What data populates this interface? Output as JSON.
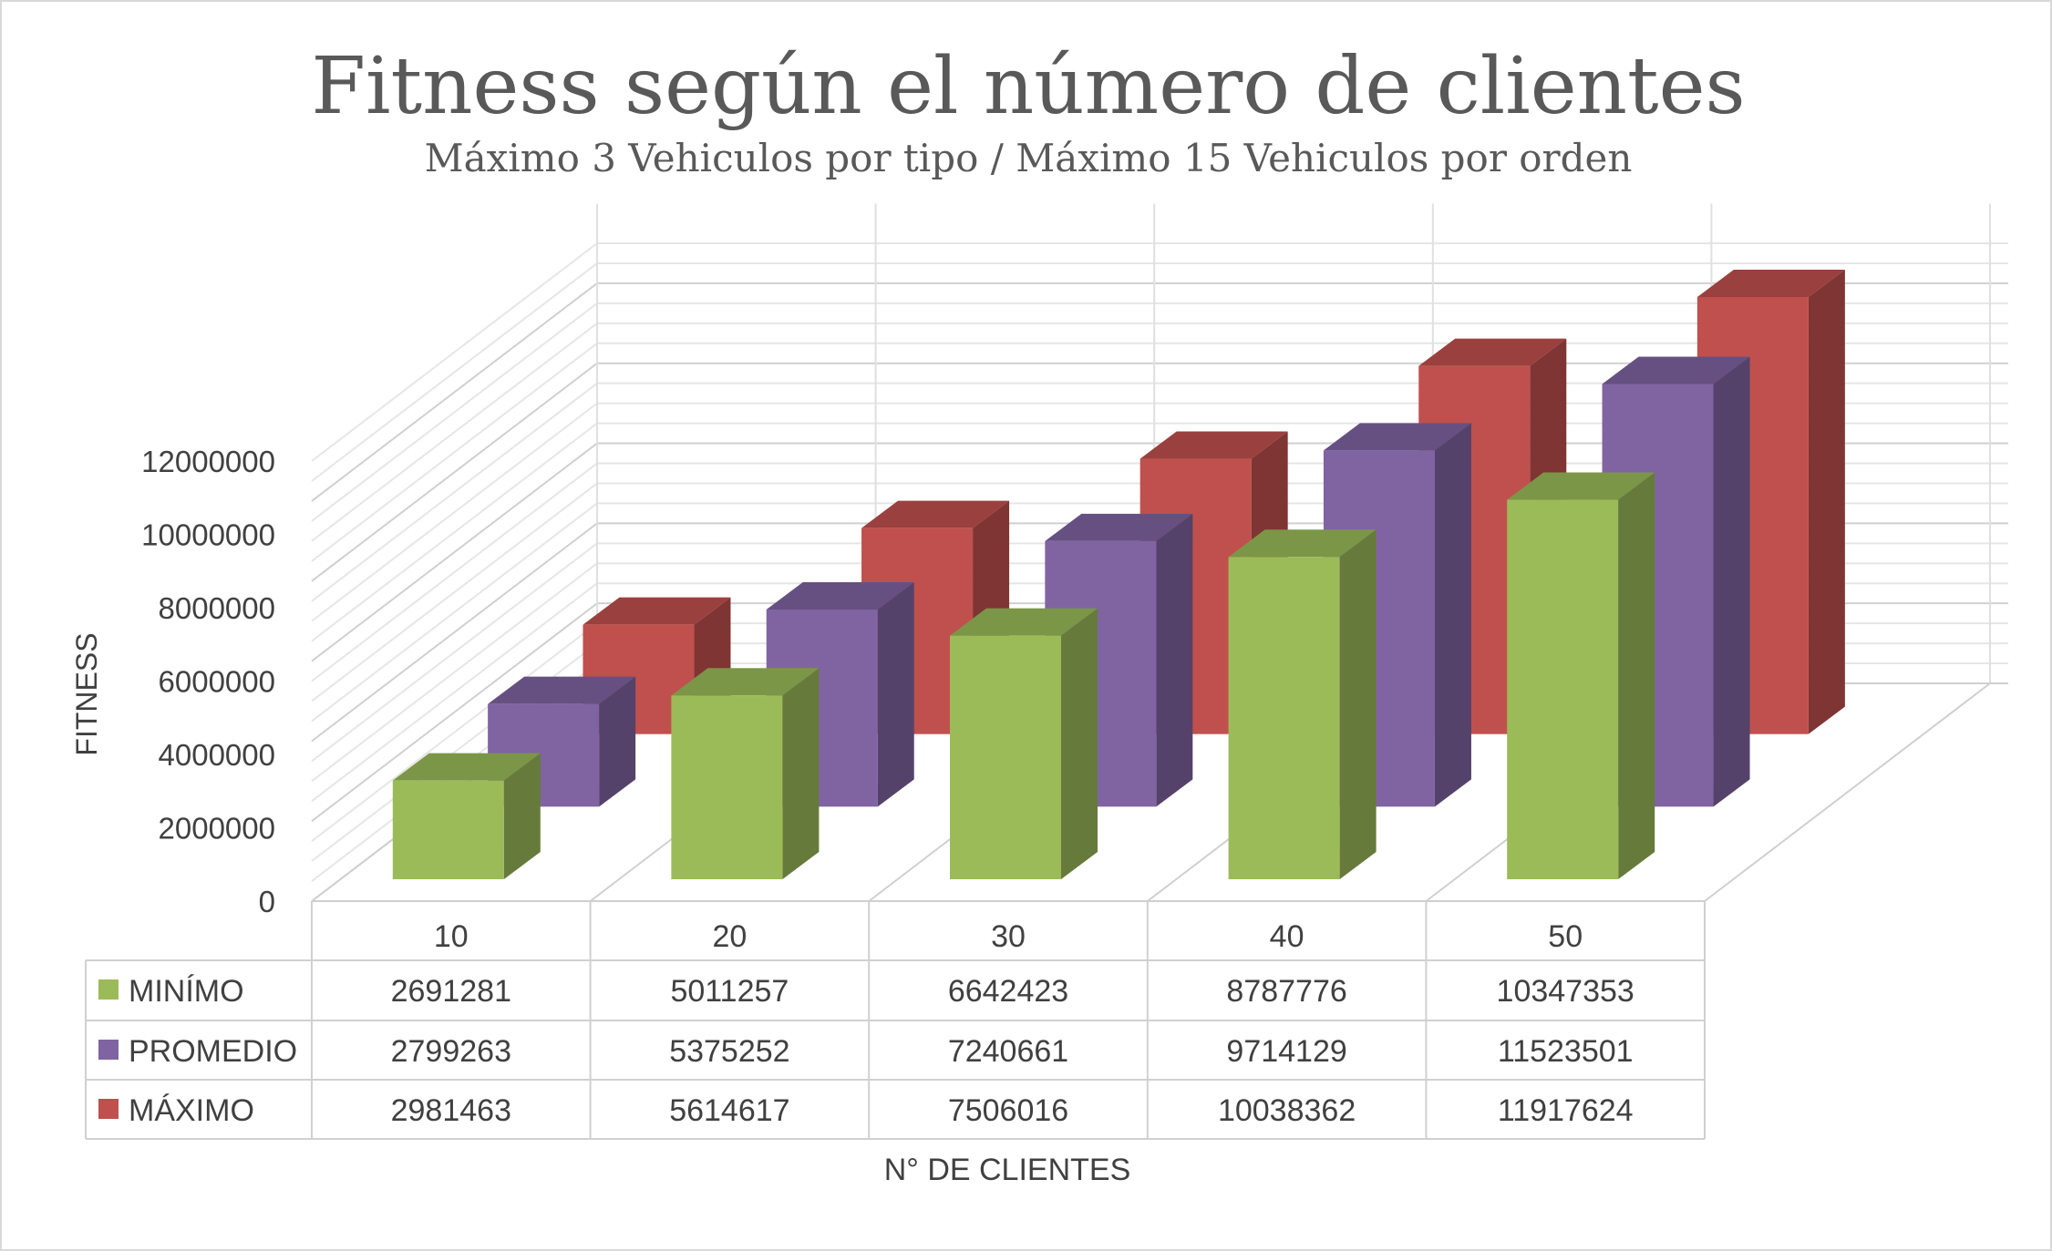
{
  "chart_data": {
    "type": "bar",
    "subtype": "3d-column-with-data-table",
    "title": "Fitness según el número de clientes",
    "subtitle": "Máximo 3 Vehiculos por tipo / Máximo 15 Vehiculos por orden",
    "xlabel": "N° DE CLIENTES",
    "ylabel": "FITNESS",
    "categories": [
      "10",
      "20",
      "30",
      "40",
      "50"
    ],
    "ylim": [
      0,
      12000000
    ],
    "yticks": [
      "0",
      "2000000",
      "4000000",
      "6000000",
      "8000000",
      "10000000",
      "12000000"
    ],
    "grid": true,
    "legend": "data-table",
    "series": [
      {
        "name": "MINÍMO",
        "color": "#9bbb59",
        "values": [
          2691281,
          5011257,
          6642423,
          8787776,
          10347353
        ]
      },
      {
        "name": "PROMEDIO",
        "color": "#8064a2",
        "values": [
          2799263,
          5375252,
          7240661,
          9714129,
          11523501
        ]
      },
      {
        "name": "MÁXIMO",
        "color": "#c0504d",
        "values": [
          2981463,
          5614617,
          7506016,
          10038362,
          11917624
        ]
      }
    ]
  }
}
